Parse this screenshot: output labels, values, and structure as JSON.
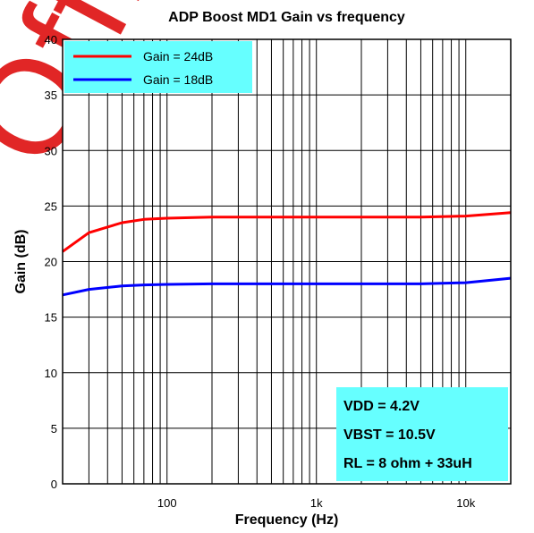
{
  "watermark": "Office",
  "chart_data": {
    "type": "line",
    "title": "ADP Boost MD1 Gain vs frequency",
    "xlabel": "Frequency (Hz)",
    "ylabel": "Gain (dB)",
    "xscale": "log",
    "xlim": [
      20,
      20000
    ],
    "ylim": [
      0,
      40
    ],
    "xticks": [
      {
        "value": 100,
        "label": "100"
      },
      {
        "value": 1000,
        "label": "1k"
      },
      {
        "value": 10000,
        "label": "10k"
      }
    ],
    "yticks": [
      0,
      5,
      10,
      15,
      20,
      25,
      30,
      35,
      40
    ],
    "grid": true,
    "legend_position": "top-left",
    "legend_bg": "#66ffff",
    "series": [
      {
        "name": "Gain = 24dB",
        "color": "#ff0000",
        "x": [
          20,
          30,
          50,
          70,
          100,
          200,
          500,
          1000,
          2000,
          5000,
          10000,
          20000
        ],
        "y": [
          20.9,
          22.6,
          23.5,
          23.8,
          23.9,
          24.0,
          24.0,
          24.0,
          24.0,
          24.0,
          24.1,
          24.4
        ]
      },
      {
        "name": "Gain = 18dB",
        "color": "#0000ff",
        "x": [
          20,
          30,
          50,
          70,
          100,
          200,
          500,
          1000,
          2000,
          5000,
          10000,
          20000
        ],
        "y": [
          17.0,
          17.5,
          17.8,
          17.9,
          17.95,
          18.0,
          18.0,
          18.0,
          18.0,
          18.0,
          18.1,
          18.5
        ]
      }
    ],
    "annotation": {
      "bg": "#66ffff",
      "lines": [
        "VDD = 4.2V",
        "VBST = 10.5V",
        "RL = 8 ohm + 33uH"
      ]
    }
  }
}
